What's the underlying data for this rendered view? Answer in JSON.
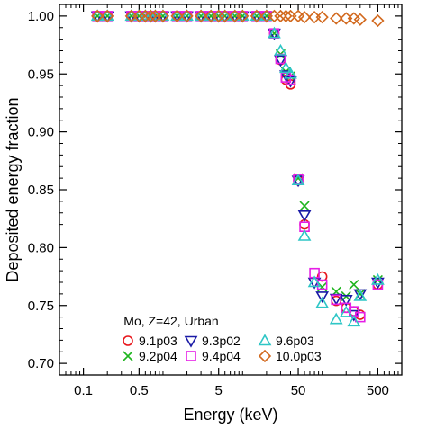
{
  "chart_data": {
    "type": "scatter",
    "xlabel": "Energy (keV)",
    "ylabel": "Deposited energy fraction",
    "xscale": "log",
    "xlim": [
      0.05,
      1000
    ],
    "ylim": [
      0.69,
      1.01
    ],
    "xticks": [
      0.1,
      0.5,
      5,
      50,
      500
    ],
    "xtick_labels": [
      "0.1",
      "0.5",
      "5",
      "50",
      "500"
    ],
    "yticks": [
      0.7,
      0.75,
      0.8,
      0.85,
      0.9,
      0.95,
      1.0
    ],
    "ytick_labels": [
      "0.70",
      "0.75",
      "0.80",
      "0.85",
      "0.90",
      "0.95",
      "1.00"
    ],
    "grid": false,
    "legend": {
      "title": "Mo, Z=42, Urban",
      "placement": "bottom-left"
    },
    "series": [
      {
        "name": "9.1p03",
        "marker": "circle",
        "color": "#e8161b",
        "x": [
          0.15,
          0.2,
          0.4,
          0.5,
          0.6,
          0.7,
          0.8,
          1,
          1.5,
          2,
          3,
          4,
          5,
          6,
          8,
          10,
          15,
          20,
          25,
          30,
          35,
          40,
          50,
          60,
          100,
          150,
          200,
          250,
          300,
          500
        ],
        "y": [
          1.0,
          1.0,
          1.0,
          1.0,
          1.0,
          1.0,
          1.0,
          1.0,
          1.0,
          1.0,
          1.0,
          1.0,
          1.0,
          1.0,
          1.0,
          1.0,
          1.0,
          1.0,
          0.985,
          0.962,
          0.945,
          0.941,
          0.858,
          0.82,
          0.775,
          0.754,
          0.748,
          0.745,
          0.742,
          0.768
        ]
      },
      {
        "name": "9.2p04",
        "marker": "cross",
        "color": "#1fb51f",
        "x": [
          0.15,
          0.2,
          0.4,
          0.5,
          0.6,
          0.7,
          0.8,
          1,
          1.5,
          2,
          3,
          4,
          5,
          6,
          8,
          10,
          15,
          20,
          25,
          30,
          35,
          40,
          50,
          60,
          100,
          150,
          200,
          250,
          300,
          500
        ],
        "y": [
          1.0,
          1.0,
          1.0,
          1.0,
          1.0,
          1.0,
          1.0,
          1.0,
          1.0,
          1.0,
          1.0,
          1.0,
          1.0,
          1.0,
          1.0,
          1.0,
          1.0,
          1.0,
          0.985,
          0.967,
          0.952,
          0.948,
          0.86,
          0.836,
          0.766,
          0.762,
          0.758,
          0.768,
          0.76,
          0.772
        ]
      },
      {
        "name": "9.3p02",
        "marker": "triangle-down",
        "color": "#1a1aa6",
        "x": [
          0.15,
          0.2,
          0.4,
          0.5,
          0.6,
          0.7,
          0.8,
          1,
          1.5,
          2,
          3,
          4,
          5,
          6,
          8,
          10,
          15,
          20,
          25,
          30,
          35,
          40,
          50,
          60,
          80,
          100,
          150,
          200,
          250,
          300,
          500
        ],
        "y": [
          1.0,
          1.0,
          1.0,
          1.0,
          1.0,
          1.0,
          1.0,
          1.0,
          1.0,
          1.0,
          1.0,
          1.0,
          1.0,
          1.0,
          1.0,
          1.0,
          1.0,
          1.0,
          0.985,
          0.962,
          0.949,
          0.944,
          0.858,
          0.828,
          0.77,
          0.758,
          0.756,
          0.755,
          0.742,
          0.76,
          0.77
        ]
      },
      {
        "name": "9.4p04",
        "marker": "square",
        "color": "#e61ee6",
        "x": [
          0.15,
          0.2,
          0.4,
          0.5,
          0.6,
          0.7,
          0.8,
          1,
          1.5,
          2,
          3,
          4,
          5,
          6,
          8,
          10,
          15,
          20,
          25,
          30,
          35,
          40,
          50,
          60,
          80,
          100,
          150,
          200,
          250,
          300,
          500
        ],
        "y": [
          1.0,
          1.0,
          1.0,
          1.0,
          1.0,
          1.0,
          1.0,
          1.0,
          1.0,
          1.0,
          1.0,
          1.0,
          1.0,
          1.0,
          1.0,
          1.0,
          1.0,
          1.0,
          0.985,
          0.963,
          0.947,
          0.945,
          0.859,
          0.818,
          0.778,
          0.768,
          0.755,
          0.748,
          0.745,
          0.74,
          0.768
        ]
      },
      {
        "name": "9.6p03",
        "marker": "triangle-up",
        "color": "#2ec6c6",
        "x": [
          0.15,
          0.2,
          0.4,
          0.5,
          0.6,
          0.7,
          0.8,
          1,
          1.5,
          2,
          3,
          4,
          5,
          6,
          8,
          10,
          15,
          20,
          25,
          30,
          35,
          40,
          50,
          60,
          80,
          100,
          150,
          200,
          250,
          300,
          500
        ],
        "y": [
          1.0,
          1.0,
          1.0,
          1.0,
          1.0,
          1.0,
          1.0,
          1.0,
          1.0,
          1.0,
          1.0,
          1.0,
          1.0,
          1.0,
          1.0,
          1.0,
          1.0,
          1.0,
          0.985,
          0.97,
          0.955,
          0.95,
          0.858,
          0.81,
          0.77,
          0.752,
          0.738,
          0.744,
          0.736,
          0.758,
          0.772
        ]
      },
      {
        "name": "10.0p03",
        "marker": "diamond",
        "color": "#d2691e",
        "x": [
          0.15,
          0.2,
          0.4,
          0.5,
          0.6,
          0.7,
          0.8,
          1,
          1.5,
          2,
          3,
          4,
          5,
          6,
          8,
          10,
          15,
          20,
          25,
          30,
          35,
          40,
          50,
          60,
          80,
          100,
          150,
          200,
          250,
          300,
          500
        ],
        "y": [
          1.0,
          1.0,
          1.0,
          1.0,
          1.0,
          1.0,
          1.0,
          1.0,
          1.0,
          1.0,
          1.0,
          1.0,
          1.0,
          1.0,
          1.0,
          1.0,
          1.0,
          1.0,
          1.0,
          1.0,
          1.0,
          1.0,
          1.0,
          0.999,
          0.999,
          0.999,
          0.998,
          0.998,
          0.998,
          0.997,
          0.996
        ]
      }
    ]
  }
}
